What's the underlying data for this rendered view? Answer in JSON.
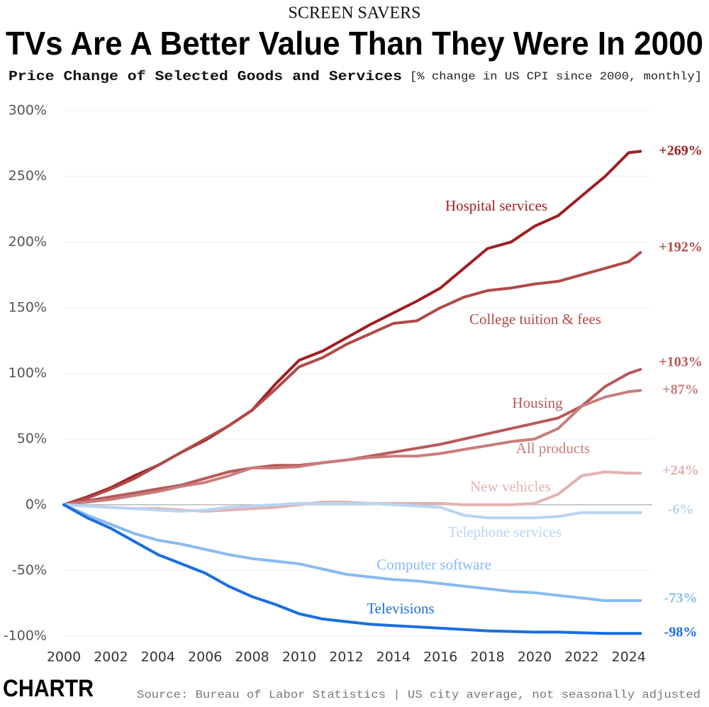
{
  "chart_data": {
    "type": "line",
    "kicker": "SCREEN SAVERS",
    "title": "TVs Are A Better Value Than They Were In 2000",
    "subtitle": "Price Change of Selected Goods and Services",
    "subtitle_note": "[% change in US CPI since 2000, monthly]",
    "source": "Source: Bureau of Labor Statistics | US city average, not seasonally adjusted",
    "logo": "CHARTR",
    "grid": true,
    "x": [
      2000,
      2001,
      2002,
      2003,
      2004,
      2005,
      2006,
      2007,
      2008,
      2009,
      2010,
      2011,
      2012,
      2013,
      2014,
      2015,
      2016,
      2017,
      2018,
      2019,
      2020,
      2021,
      2022,
      2023,
      2024,
      2024.5
    ],
    "xlim": [
      2000,
      2025
    ],
    "xticks": [
      2000,
      2002,
      2004,
      2006,
      2008,
      2010,
      2012,
      2014,
      2016,
      2018,
      2020,
      2022,
      2024
    ],
    "ylim": [
      -100,
      300
    ],
    "yticks": [
      {
        "value": -100,
        "label": "-100%"
      },
      {
        "value": -50,
        "label": "-50%"
      },
      {
        "value": 0,
        "label": "0%"
      },
      {
        "value": 50,
        "label": "50%"
      },
      {
        "value": 100,
        "label": "100%"
      },
      {
        "value": 150,
        "label": "150%"
      },
      {
        "value": 200,
        "label": "200%"
      },
      {
        "value": 250,
        "label": "250%"
      },
      {
        "value": 300,
        "label": "300%"
      }
    ],
    "series": [
      {
        "name": "Hospital services",
        "color": "#9e1f22",
        "values": [
          0,
          6,
          13,
          22,
          30,
          40,
          49,
          60,
          72,
          92,
          110,
          117,
          127,
          137,
          146,
          155,
          165,
          180,
          195,
          200,
          212,
          220,
          235,
          250,
          268,
          269
        ],
        "value_labels": [
          null,
          null,
          null,
          null,
          null,
          null,
          null,
          null,
          null,
          null,
          null,
          null,
          null,
          null,
          null,
          null,
          null,
          null,
          null,
          null,
          null,
          null,
          null,
          null,
          null,
          "+269%"
        ]
      },
      {
        "name": "College tuition & fees",
        "color": "#b04a48",
        "values": [
          0,
          5,
          12,
          20,
          30,
          40,
          50,
          60,
          72,
          88,
          105,
          112,
          122,
          130,
          138,
          140,
          150,
          158,
          163,
          165,
          168,
          170,
          175,
          180,
          185,
          192
        ],
        "value_labels": [
          null,
          null,
          null,
          null,
          null,
          null,
          null,
          null,
          null,
          null,
          null,
          null,
          null,
          null,
          null,
          null,
          null,
          null,
          null,
          null,
          null,
          null,
          null,
          null,
          null,
          "+192%"
        ]
      },
      {
        "name": "Housing",
        "color": "#b8595a",
        "values": [
          0,
          3,
          6,
          9,
          12,
          15,
          20,
          25,
          28,
          30,
          30,
          32,
          34,
          37,
          40,
          43,
          46,
          50,
          54,
          58,
          62,
          66,
          75,
          90,
          100,
          103
        ],
        "value_labels": [
          null,
          null,
          null,
          null,
          null,
          null,
          null,
          null,
          null,
          null,
          null,
          null,
          null,
          null,
          null,
          null,
          null,
          null,
          null,
          null,
          null,
          null,
          null,
          null,
          null,
          "+103%"
        ]
      },
      {
        "name": "All products",
        "color": "#c97d7d",
        "values": [
          0,
          2,
          4,
          7,
          10,
          14,
          17,
          22,
          28,
          28,
          29,
          32,
          34,
          36,
          37,
          37,
          39,
          42,
          45,
          48,
          50,
          58,
          75,
          82,
          86,
          87
        ],
        "value_labels": [
          null,
          null,
          null,
          null,
          null,
          null,
          null,
          null,
          null,
          null,
          null,
          null,
          null,
          null,
          null,
          null,
          null,
          null,
          null,
          null,
          null,
          null,
          null,
          null,
          null,
          "+87%"
        ]
      },
      {
        "name": "New vehicles",
        "color": "#e2b2b1",
        "values": [
          0,
          -1,
          -2,
          -3,
          -3,
          -4,
          -5,
          -4,
          -3,
          -2,
          0,
          2,
          2,
          1,
          1,
          1,
          1,
          0,
          0,
          0,
          1,
          8,
          22,
          25,
          24,
          24
        ],
        "value_labels": [
          null,
          null,
          null,
          null,
          null,
          null,
          null,
          null,
          null,
          null,
          null,
          null,
          null,
          null,
          null,
          null,
          null,
          null,
          null,
          null,
          null,
          null,
          null,
          null,
          null,
          "+24%"
        ]
      },
      {
        "name": "Telephone services",
        "color": "#b8d5f2",
        "values": [
          0,
          -1,
          -2,
          -3,
          -4,
          -5,
          -4,
          -2,
          -1,
          0,
          1,
          1,
          1,
          1,
          0,
          -1,
          -2,
          -8,
          -10,
          -10,
          -10,
          -9,
          -6,
          -6,
          -6,
          -6
        ],
        "value_labels": [
          null,
          null,
          null,
          null,
          null,
          null,
          null,
          null,
          null,
          null,
          null,
          null,
          null,
          null,
          null,
          null,
          null,
          null,
          null,
          null,
          null,
          null,
          null,
          null,
          null,
          "-6%"
        ]
      },
      {
        "name": "Computer software",
        "color": "#88bbf0",
        "values": [
          0,
          -8,
          -15,
          -22,
          -27,
          -30,
          -34,
          -38,
          -41,
          -43,
          -45,
          -49,
          -53,
          -55,
          -57,
          -58,
          -60,
          -62,
          -64,
          -66,
          -67,
          -69,
          -71,
          -73,
          -73,
          -73
        ],
        "value_labels": [
          null,
          null,
          null,
          null,
          null,
          null,
          null,
          null,
          null,
          null,
          null,
          null,
          null,
          null,
          null,
          null,
          null,
          null,
          null,
          null,
          null,
          null,
          null,
          null,
          null,
          "-73%"
        ]
      },
      {
        "name": "Televisions",
        "color": "#1a6ee0",
        "values": [
          0,
          -10,
          -18,
          -28,
          -38,
          -45,
          -52,
          -62,
          -70,
          -76,
          -83,
          -87,
          -89,
          -91,
          -92,
          -93,
          -94,
          -95,
          -96,
          -96.5,
          -97,
          -97,
          -97.5,
          -98,
          -98,
          -98
        ],
        "value_labels": [
          null,
          null,
          null,
          null,
          null,
          null,
          null,
          null,
          null,
          null,
          null,
          null,
          null,
          null,
          null,
          null,
          null,
          null,
          null,
          null,
          null,
          null,
          null,
          null,
          null,
          "-98%"
        ]
      }
    ]
  }
}
